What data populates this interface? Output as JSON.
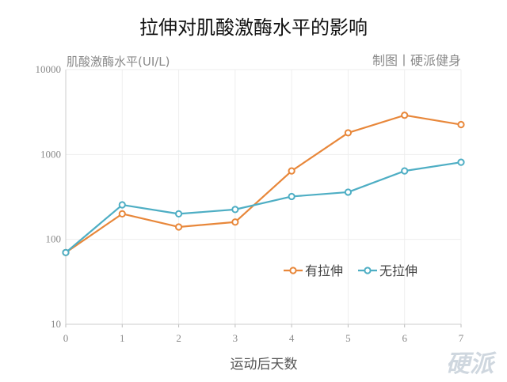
{
  "chart_data": {
    "type": "line",
    "title": "拉伸对肌酸激酶水平的影响",
    "ylabel": "肌酸激酶水平(UI/L)",
    "xlabel": "运动后天数",
    "credit": "制图丨硬派健身",
    "watermark": "硬派",
    "yscale": "log",
    "ylim": [
      10,
      10000
    ],
    "xlim": [
      0,
      7
    ],
    "yticks": [
      "10",
      "100",
      "1000",
      "10000"
    ],
    "x": [
      0,
      1,
      2,
      3,
      4,
      5,
      6,
      7
    ],
    "series": [
      {
        "name": "有拉伸",
        "color": "#e8873a",
        "values": [
          70,
          200,
          140,
          160,
          640,
          1800,
          2900,
          2250
        ]
      },
      {
        "name": "无拉伸",
        "color": "#4eaec4",
        "values": [
          70,
          255,
          200,
          225,
          320,
          360,
          640,
          810
        ]
      }
    ],
    "legend_position": "center-right",
    "grid": true
  }
}
